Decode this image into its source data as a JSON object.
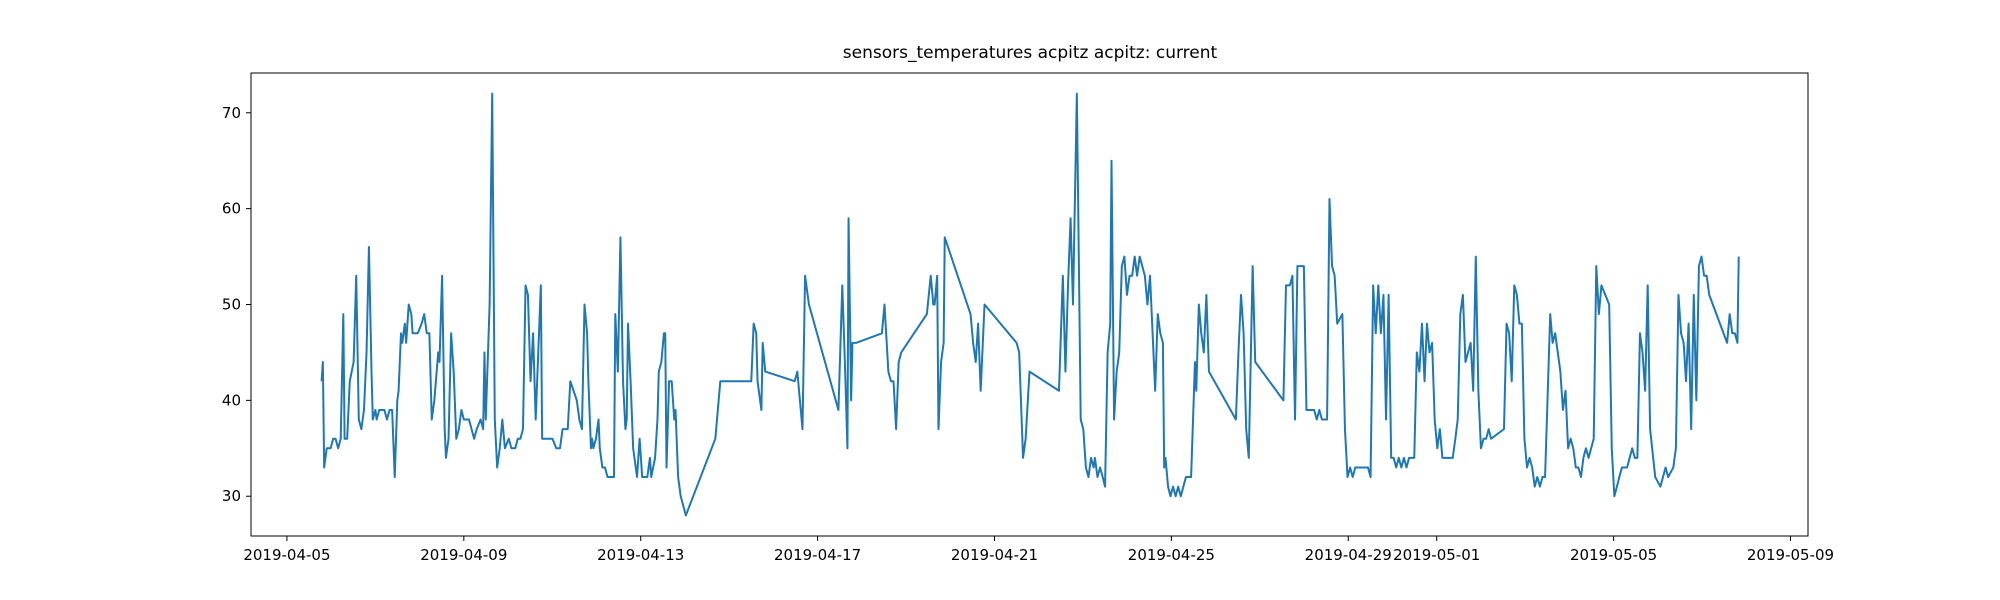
{
  "chart_data": {
    "type": "line",
    "title": "sensors_temperatures acpitz acpitz:  current",
    "color": "#1f77b4",
    "xlim": [
      "2019-04-04T04:30",
      "2019-05-09T09:30"
    ],
    "xticks": [
      "2019-04-05",
      "2019-04-09",
      "2019-04-13",
      "2019-04-17",
      "2019-04-21",
      "2019-04-25",
      "2019-04-29",
      "2019-05-01",
      "2019-05-05",
      "2019-05-09"
    ],
    "ylim": [
      25.85,
      74.15
    ],
    "yticks": [
      30,
      40,
      50,
      60,
      70
    ],
    "x": [
      "2019-04-05T18:48",
      "2019-04-05T19:30",
      "2019-04-05T20:12",
      "2019-04-05T21:36",
      "2019-04-05T23:42",
      "2019-04-06T01:06",
      "2019-04-06T02:24",
      "2019-04-06T03:48",
      "2019-04-06T05:12",
      "2019-04-06T06:36",
      "2019-04-06T07:18",
      "2019-04-06T08:42",
      "2019-04-06T10:06",
      "2019-04-06T12:12",
      "2019-04-06T13:36",
      "2019-04-06T15:00",
      "2019-04-06T16:24",
      "2019-04-06T17:48",
      "2019-04-06T19:12",
      "2019-04-06T20:30",
      "2019-04-06T21:54",
      "2019-04-06T22:36",
      "2019-04-07T00:00",
      "2019-04-07T00:42",
      "2019-04-07T02:06",
      "2019-04-07T04:54",
      "2019-04-07T06:18",
      "2019-04-07T07:42",
      "2019-04-07T09:06",
      "2019-04-07T10:30",
      "2019-04-07T11:54",
      "2019-04-07T12:36",
      "2019-04-07T13:54",
      "2019-04-07T14:36",
      "2019-04-07T16:00",
      "2019-04-07T16:42",
      "2019-04-07T18:06",
      "2019-04-07T19:30",
      "2019-04-07T20:12",
      "2019-04-07T23:00",
      "2019-04-08T01:06",
      "2019-04-08T02:30",
      "2019-04-08T03:54",
      "2019-04-08T05:18",
      "2019-04-08T06:36",
      "2019-04-08T08:00",
      "2019-04-08T10:06",
      "2019-04-08T10:48",
      "2019-04-08T12:12",
      "2019-04-08T13:36",
      "2019-04-08T14:18",
      "2019-04-08T15:42",
      "2019-04-08T17:06",
      "2019-04-08T18:30",
      "2019-04-08T19:54",
      "2019-04-08T21:18",
      "2019-04-08T22:42",
      "2019-04-09T00:00",
      "2019-04-09T02:48",
      "2019-04-09T05:36",
      "2019-04-09T07:00",
      "2019-04-09T09:06",
      "2019-04-09T10:30",
      "2019-04-09T11:12",
      "2019-04-09T11:54",
      "2019-04-09T14:00",
      "2019-04-09T15:24",
      "2019-04-09T16:48",
      "2019-04-09T18:06",
      "2019-04-09T19:30",
      "2019-04-09T20:54",
      "2019-04-09T22:18",
      "2019-04-10T00:24",
      "2019-04-10T01:48",
      "2019-04-10T03:54",
      "2019-04-10T05:18",
      "2019-04-10T06:42",
      "2019-04-10T08:06",
      "2019-04-10T09:30",
      "2019-04-10T10:48",
      "2019-04-10T12:12",
      "2019-04-10T13:36",
      "2019-04-10T15:00",
      "2019-04-10T16:24",
      "2019-04-10T17:48",
      "2019-04-10T18:30",
      "2019-04-10T21:18",
      "2019-04-11T00:06",
      "2019-04-11T02:12",
      "2019-04-11T04:12",
      "2019-04-11T05:36",
      "2019-04-11T08:24",
      "2019-04-11T09:48",
      "2019-04-11T13:18",
      "2019-04-11T14:42",
      "2019-04-11T16:06",
      "2019-04-11T17:30",
      "2019-04-11T18:54",
      "2019-04-11T19:36",
      "2019-04-11T21:00",
      "2019-04-11T21:36",
      "2019-04-11T22:18",
      "2019-04-11T23:42",
      "2019-04-12T01:06",
      "2019-04-12T01:48",
      "2019-04-12T03:12",
      "2019-04-12T04:36",
      "2019-04-12T06:00",
      "2019-04-12T09:30",
      "2019-04-12T10:12",
      "2019-04-12T11:36",
      "2019-04-12T13:00",
      "2019-04-12T14:24",
      "2019-04-12T15:42",
      "2019-04-12T16:24",
      "2019-04-12T17:06",
      "2019-04-12T18:30",
      "2019-04-12T19:54",
      "2019-04-12T22:00",
      "2019-04-12T23:24",
      "2019-04-13T00:48",
      "2019-04-13T03:36",
      "2019-04-13T05:00",
      "2019-04-13T05:42",
      "2019-04-13T07:48",
      "2019-04-13T09:06",
      "2019-04-13T09:48",
      "2019-04-13T11:12",
      "2019-04-13T12:36",
      "2019-04-13T13:18",
      "2019-04-13T14:00",
      "2019-04-13T15:24",
      "2019-04-13T16:48",
      "2019-04-13T18:12",
      "2019-04-13T18:54",
      "2019-04-13T20:18",
      "2019-04-13T21:42",
      "2019-04-13T23:06",
      "2019-04-14T00:30",
      "2019-04-14T16:30",
      "2019-04-14T19:12",
      "2019-04-15T12:00",
      "2019-04-15T13:18",
      "2019-04-15T14:42",
      "2019-04-15T15:24",
      "2019-04-15T17:30",
      "2019-04-15T18:12",
      "2019-04-15T19:36",
      "2019-04-16T11:36",
      "2019-04-16T13:00",
      "2019-04-16T14:24",
      "2019-04-16T15:48",
      "2019-04-16T17:12",
      "2019-04-16T19:18",
      "2019-04-17T11:18",
      "2019-04-17T13:24",
      "2019-04-17T14:48",
      "2019-04-17T16:12",
      "2019-04-17T16:48",
      "2019-04-17T18:12",
      "2019-04-17T18:54",
      "2019-04-17T21:00",
      "2019-04-18T10:54",
      "2019-04-18T12:18",
      "2019-04-18T14:24",
      "2019-04-18T15:48",
      "2019-04-18T17:12",
      "2019-04-18T18:36",
      "2019-04-18T20:00",
      "2019-04-18T21:24",
      "2019-04-19T11:18",
      "2019-04-19T13:24",
      "2019-04-19T14:48",
      "2019-04-19T15:30",
      "2019-04-19T16:54",
      "2019-04-19T17:36",
      "2019-04-19T19:00",
      "2019-04-19T20:24",
      "2019-04-19T21:00",
      "2019-04-20T11:00",
      "2019-04-20T12:24",
      "2019-04-20T13:48",
      "2019-04-20T15:06",
      "2019-04-20T16:30",
      "2019-04-20T18:36",
      "2019-04-21T12:00",
      "2019-04-21T13:24",
      "2019-04-21T15:30",
      "2019-04-21T16:54",
      "2019-04-21T19:00",
      "2019-04-22T11:00",
      "2019-04-22T13:06",
      "2019-04-22T14:30",
      "2019-04-22T15:54",
      "2019-04-22T17:18",
      "2019-04-22T18:36",
      "2019-04-22T20:42",
      "2019-04-22T22:48",
      "2019-04-23T00:12",
      "2019-04-23T01:36",
      "2019-04-23T03:00",
      "2019-04-23T04:24",
      "2019-04-23T05:48",
      "2019-04-23T06:30",
      "2019-04-23T07:54",
      "2019-04-23T09:18",
      "2019-04-23T10:42",
      "2019-04-23T12:00",
      "2019-04-23T13:24",
      "2019-04-23T14:48",
      "2019-04-23T15:30",
      "2019-04-23T16:54",
      "2019-04-23T18:18",
      "2019-04-23T19:42",
      "2019-04-23T21:06",
      "2019-04-23T22:30",
      "2019-04-23T23:54",
      "2019-04-24T01:18",
      "2019-04-24T02:42",
      "2019-04-24T04:06",
      "2019-04-24T05:24",
      "2019-04-24T06:48",
      "2019-04-24T08:12",
      "2019-04-24T09:36",
      "2019-04-24T11:00",
      "2019-04-24T12:24",
      "2019-04-24T13:48",
      "2019-04-24T15:12",
      "2019-04-24T16:36",
      "2019-04-24T18:00",
      "2019-04-24T19:24",
      "2019-04-24T20:06",
      "2019-04-24T20:48",
      "2019-04-24T22:12",
      "2019-04-24T23:30",
      "2019-04-25T00:54",
      "2019-04-25T02:18",
      "2019-04-25T03:42",
      "2019-04-25T05:06",
      "2019-04-25T06:30",
      "2019-04-25T07:54",
      "2019-04-25T10:42",
      "2019-04-25T12:48",
      "2019-04-25T13:30",
      "2019-04-25T14:54",
      "2019-04-25T16:12",
      "2019-04-25T17:36",
      "2019-04-25T19:00",
      "2019-04-25T20:24",
      "2019-04-26T11:00",
      "2019-04-26T12:24",
      "2019-04-26T13:48",
      "2019-04-26T15:12",
      "2019-04-26T16:36",
      "2019-04-26T18:00",
      "2019-04-26T20:06",
      "2019-04-26T21:30",
      "2019-04-27T12:48",
      "2019-04-27T14:12",
      "2019-04-27T16:18",
      "2019-04-27T17:42",
      "2019-04-27T19:06",
      "2019-04-27T20:24",
      "2019-04-27T23:54",
      "2019-04-28T01:18",
      "2019-04-28T05:30",
      "2019-04-28T06:54",
      "2019-04-28T08:18",
      "2019-04-28T09:42",
      "2019-04-28T12:30",
      "2019-04-28T13:48",
      "2019-04-28T15:12",
      "2019-04-28T16:36",
      "2019-04-28T18:00",
      "2019-04-28T20:48",
      "2019-04-28T22:12",
      "2019-04-28T23:36",
      "2019-04-29T01:00",
      "2019-04-29T02:24",
      "2019-04-29T03:48",
      "2019-04-29T10:42",
      "2019-04-29T12:06",
      "2019-04-29T13:30",
      "2019-04-29T14:54",
      "2019-04-29T16:18",
      "2019-04-29T17:42",
      "2019-04-29T19:06",
      "2019-04-29T20:30",
      "2019-04-29T21:54",
      "2019-04-29T23:18",
      "2019-04-30T00:36",
      "2019-04-30T02:00",
      "2019-04-30T03:24",
      "2019-04-30T04:48",
      "2019-04-30T06:12",
      "2019-04-30T07:36",
      "2019-04-30T09:00",
      "2019-04-30T11:48",
      "2019-04-30T13:12",
      "2019-04-30T14:36",
      "2019-04-30T16:00",
      "2019-04-30T17:24",
      "2019-04-30T18:42",
      "2019-04-30T20:06",
      "2019-04-30T21:30",
      "2019-04-30T22:54",
      "2019-05-01T00:18",
      "2019-05-01T01:42",
      "2019-05-01T03:06",
      "2019-05-01T08:42",
      "2019-05-01T10:06",
      "2019-05-01T11:24",
      "2019-05-01T12:48",
      "2019-05-01T14:12",
      "2019-05-01T15:36",
      "2019-05-01T18:24",
      "2019-05-01T19:48",
      "2019-05-01T21:12",
      "2019-05-01T22:36",
      "2019-05-02T00:00",
      "2019-05-02T01:24",
      "2019-05-02T02:48",
      "2019-05-02T04:12",
      "2019-05-02T05:30",
      "2019-05-02T12:30",
      "2019-05-02T13:54",
      "2019-05-02T15:18",
      "2019-05-02T16:42",
      "2019-05-02T18:06",
      "2019-05-02T19:30",
      "2019-05-02T20:54",
      "2019-05-02T22:12",
      "2019-05-02T23:36",
      "2019-05-03T01:00",
      "2019-05-03T02:24",
      "2019-05-03T03:48",
      "2019-05-03T05:12",
      "2019-05-03T06:36",
      "2019-05-03T08:00",
      "2019-05-03T09:24",
      "2019-05-03T10:48",
      "2019-05-03T13:36",
      "2019-05-03T14:54",
      "2019-05-03T16:18",
      "2019-05-03T17:42",
      "2019-05-03T19:06",
      "2019-05-03T20:30",
      "2019-05-03T21:54",
      "2019-05-03T23:18",
      "2019-05-04T00:42",
      "2019-05-04T02:06",
      "2019-05-04T03:30",
      "2019-05-04T04:54",
      "2019-05-04T06:18",
      "2019-05-04T07:36",
      "2019-05-04T09:00",
      "2019-05-04T10:24",
      "2019-05-04T13:12",
      "2019-05-04T14:36",
      "2019-05-04T16:00",
      "2019-05-04T17:24",
      "2019-05-04T21:36",
      "2019-05-04T23:00",
      "2019-05-05T00:24",
      "2019-05-05T01:48",
      "2019-05-05T03:06",
      "2019-05-05T04:30",
      "2019-05-05T07:18",
      "2019-05-05T08:42",
      "2019-05-05T10:06",
      "2019-05-05T11:30",
      "2019-05-05T12:54",
      "2019-05-05T14:18",
      "2019-05-05T15:42",
      "2019-05-05T17:06",
      "2019-05-05T18:30",
      "2019-05-05T19:48",
      "2019-05-05T22:36",
      "2019-05-06T01:24",
      "2019-05-06T02:48",
      "2019-05-06T04:12",
      "2019-05-06T05:36",
      "2019-05-06T08:24",
      "2019-05-06T09:48",
      "2019-05-06T11:12",
      "2019-05-06T12:36",
      "2019-05-06T14:00",
      "2019-05-06T15:18",
      "2019-05-06T16:42",
      "2019-05-06T18:06",
      "2019-05-06T19:30",
      "2019-05-06T20:54",
      "2019-05-06T22:18",
      "2019-05-06T23:42",
      "2019-05-07T01:06",
      "2019-05-07T02:30",
      "2019-05-07T03:54",
      "2019-05-07T13:36",
      "2019-05-07T15:00",
      "2019-05-07T16:24",
      "2019-05-07T17:48",
      "2019-05-07T19:12",
      "2019-05-07T19:54"
    ],
    "values": [
      42,
      44,
      33,
      35,
      35,
      36,
      36,
      35,
      36,
      49,
      36,
      36,
      42,
      44,
      53,
      38,
      37,
      39,
      45,
      56,
      43,
      38,
      39,
      38,
      39,
      39,
      38,
      39,
      39,
      32,
      40,
      41,
      47,
      46,
      48,
      46,
      50,
      49,
      47,
      47,
      48,
      49,
      47,
      47,
      38,
      40,
      45,
      44,
      53,
      37,
      34,
      36,
      47,
      43,
      36,
      37,
      39,
      38,
      38,
      36,
      37,
      38,
      37,
      45,
      38,
      50,
      72,
      38,
      33,
      35,
      38,
      35,
      36,
      35,
      35,
      36,
      36,
      37,
      52,
      51,
      42,
      47,
      38,
      45,
      52,
      36,
      36,
      36,
      35,
      35,
      37,
      37,
      42,
      40,
      38,
      37,
      50,
      47,
      42,
      35,
      36,
      35,
      36,
      38,
      35,
      33,
      33,
      32,
      32,
      49,
      43,
      57,
      42,
      37,
      38,
      48,
      42,
      35,
      32,
      36,
      32,
      32,
      34,
      32,
      34,
      38,
      43,
      44,
      47,
      47,
      33,
      42,
      42,
      38,
      39,
      32,
      30,
      29,
      28,
      36,
      42,
      42,
      48,
      47,
      42,
      39,
      46,
      43,
      42,
      43,
      40,
      37,
      53,
      50,
      39,
      52,
      44,
      35,
      59,
      40,
      46,
      46,
      47,
      50,
      43,
      42,
      42,
      37,
      44,
      45,
      49,
      53,
      50,
      50,
      53,
      37,
      44,
      46,
      57,
      49,
      46,
      44,
      48,
      41,
      50,
      46,
      45,
      34,
      36,
      43,
      41,
      53,
      43,
      52,
      59,
      50,
      72,
      38,
      37,
      33,
      32,
      34,
      33,
      34,
      32,
      33,
      32,
      31,
      45,
      48,
      65,
      38,
      43,
      45,
      54,
      55,
      51,
      53,
      53,
      55,
      53,
      55,
      54,
      53,
      50,
      53,
      47,
      41,
      49,
      47,
      46,
      33,
      34,
      31,
      30,
      31,
      30,
      31,
      30,
      31,
      32,
      32,
      44,
      41,
      50,
      47,
      45,
      51,
      43,
      38,
      45,
      51,
      47,
      37,
      34,
      54,
      44,
      40,
      52,
      52,
      53,
      38,
      54,
      54,
      39,
      39,
      38,
      39,
      38,
      38,
      61,
      54,
      53,
      48,
      49,
      37,
      32,
      33,
      32,
      33,
      33,
      32,
      52,
      47,
      52,
      47,
      51,
      38,
      51,
      34,
      34,
      33,
      34,
      33,
      34,
      33,
      34,
      34,
      45,
      43,
      48,
      42,
      48,
      45,
      46,
      38,
      35,
      37,
      34,
      34,
      36,
      38,
      49,
      51,
      44,
      46,
      41,
      55,
      41,
      35,
      36,
      36,
      37,
      36,
      37,
      48,
      47,
      42,
      52,
      51,
      48,
      48,
      36,
      33,
      34,
      33,
      31,
      32,
      31,
      32,
      32,
      49,
      46,
      47,
      45,
      43,
      39,
      41,
      35,
      36,
      35,
      33,
      33,
      32,
      34,
      35,
      34,
      36,
      54,
      49,
      52,
      50,
      35,
      30,
      31,
      32,
      33,
      33,
      34,
      35,
      34,
      34,
      47,
      45,
      41,
      52,
      37,
      32,
      31,
      32,
      33,
      32,
      33,
      35,
      51,
      47,
      46,
      42,
      48,
      37,
      51,
      40,
      54,
      55,
      53,
      53,
      51,
      46,
      49,
      47,
      47,
      46,
      55
    ]
  }
}
